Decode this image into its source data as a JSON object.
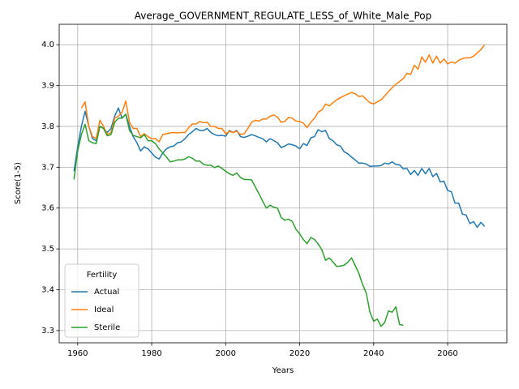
{
  "chart_data": {
    "type": "line",
    "title": "Average_GOVERNMENT_REGULATE_LESS_of_White_Male_Pop",
    "xlabel": "Years",
    "ylabel": "Score(1-5)",
    "legend_title": "Fertility",
    "legend": "lower left",
    "xlim": [
      1955,
      2076
    ],
    "xticks": [
      1960,
      1980,
      2000,
      2020,
      2040,
      2060
    ],
    "ylim": [
      3.27,
      4.05
    ],
    "yticks": [
      3.3,
      3.4,
      3.5,
      3.6,
      3.7,
      3.8,
      3.9,
      {
        "value": 4,
        "label": "4.0"
      }
    ],
    "series": [
      {
        "name": "Actual",
        "color": "#1f77b4",
        "x": [
          1959,
          1960,
          1961,
          1962,
          1963,
          1964,
          1965,
          1966,
          1967,
          1968,
          1969,
          1970,
          1971,
          1972,
          1973,
          1974,
          1975,
          1976,
          1977,
          1978,
          1979,
          1980,
          1981,
          1982,
          1983,
          1984,
          1985,
          1986,
          1987,
          1988,
          1989,
          1990,
          1991,
          1992,
          1993,
          1994,
          1995,
          1996,
          1997,
          1998,
          1999,
          2000,
          2001,
          2002,
          2003,
          2004,
          2005,
          2006,
          2007,
          2008,
          2009,
          2010,
          2011,
          2012,
          2013,
          2014,
          2015,
          2016,
          2017,
          2018,
          2019,
          2020,
          2021,
          2022,
          2023,
          2024,
          2025,
          2026,
          2027,
          2028,
          2029,
          2030,
          2031,
          2032,
          2033,
          2034,
          2035,
          2036,
          2037,
          2038,
          2039,
          2040,
          2041,
          2042,
          2043,
          2044,
          2045,
          2046,
          2047,
          2048,
          2049,
          2050,
          2051,
          2052,
          2053,
          2054,
          2055,
          2056,
          2057,
          2058,
          2059,
          2060,
          2061,
          2062,
          2063,
          2064,
          2065,
          2066,
          2067,
          2068,
          2069,
          2070
        ],
        "values": [
          3.69,
          3.75,
          3.8,
          3.837,
          3.8,
          3.77,
          3.765,
          3.8,
          3.795,
          3.785,
          3.795,
          3.825,
          3.845,
          3.82,
          3.83,
          3.8,
          3.775,
          3.76,
          3.74,
          3.75,
          3.745,
          3.735,
          3.725,
          3.72,
          3.735,
          3.745,
          3.75,
          3.752,
          3.76,
          3.762,
          3.77,
          3.78,
          3.787,
          3.795,
          3.79,
          3.79,
          3.795,
          3.785,
          3.78,
          3.777,
          3.778,
          3.776,
          3.79,
          3.785,
          3.79,
          3.775,
          3.773,
          3.776,
          3.78,
          3.777,
          3.773,
          3.77,
          3.762,
          3.77,
          3.765,
          3.76,
          3.748,
          3.752,
          3.757,
          3.755,
          3.752,
          3.745,
          3.758,
          3.753,
          3.772,
          3.775,
          3.792,
          3.787,
          3.79,
          3.77,
          3.765,
          3.755,
          3.752,
          3.738,
          3.733,
          3.725,
          3.718,
          3.71,
          3.71,
          3.708,
          3.702,
          3.703,
          3.703,
          3.704,
          3.71,
          3.708,
          3.713,
          3.707,
          3.706,
          3.696,
          3.697,
          3.682,
          3.692,
          3.68,
          3.697,
          3.684,
          3.697,
          3.677,
          3.685,
          3.664,
          3.666,
          3.643,
          3.64,
          3.612,
          3.612,
          3.585,
          3.583,
          3.562,
          3.567,
          3.553,
          3.565,
          3.555
        ]
      },
      {
        "name": "Ideal",
        "color": "#ff7f0e",
        "x": [
          1961,
          1962,
          1963,
          1964,
          1965,
          1966,
          1967,
          1968,
          1969,
          1970,
          1971,
          1972,
          1973,
          1974,
          1975,
          1976,
          1977,
          1978,
          1979,
          1980,
          1981,
          1982,
          1983,
          1984,
          1985,
          1986,
          1987,
          1988,
          1989,
          1990,
          1991,
          1992,
          1993,
          1994,
          1995,
          1996,
          1997,
          1998,
          1999,
          2000,
          2001,
          2002,
          2003,
          2004,
          2005,
          2006,
          2007,
          2008,
          2009,
          2010,
          2011,
          2012,
          2013,
          2014,
          2015,
          2016,
          2017,
          2018,
          2019,
          2020,
          2021,
          2022,
          2023,
          2024,
          2025,
          2026,
          2027,
          2028,
          2029,
          2030,
          2031,
          2032,
          2033,
          2034,
          2035,
          2036,
          2037,
          2038,
          2039,
          2040,
          2041,
          2042,
          2043,
          2044,
          2045,
          2046,
          2047,
          2048,
          2049,
          2050,
          2051,
          2052,
          2053,
          2054,
          2055,
          2056,
          2057,
          2058,
          2059,
          2060,
          2061,
          2062,
          2063,
          2064,
          2065,
          2066,
          2067,
          2068,
          2069,
          2070
        ],
        "values": [
          3.845,
          3.86,
          3.8,
          3.775,
          3.77,
          3.815,
          3.8,
          3.78,
          3.785,
          3.82,
          3.825,
          3.835,
          3.862,
          3.81,
          3.795,
          3.795,
          3.775,
          3.782,
          3.775,
          3.77,
          3.77,
          3.762,
          3.78,
          3.782,
          3.784,
          3.785,
          3.784,
          3.785,
          3.785,
          3.797,
          3.806,
          3.806,
          3.812,
          3.809,
          3.81,
          3.8,
          3.8,
          3.795,
          3.795,
          3.782,
          3.788,
          3.785,
          3.788,
          3.78,
          3.782,
          3.795,
          3.81,
          3.815,
          3.813,
          3.818,
          3.818,
          3.825,
          3.828,
          3.823,
          3.81,
          3.812,
          3.822,
          3.82,
          3.813,
          3.812,
          3.808,
          3.797,
          3.81,
          3.82,
          3.835,
          3.84,
          3.855,
          3.85,
          3.858,
          3.865,
          3.87,
          3.875,
          3.879,
          3.883,
          3.88,
          3.873,
          3.875,
          3.866,
          3.858,
          3.855,
          3.86,
          3.865,
          3.875,
          3.885,
          3.895,
          3.903,
          3.91,
          3.917,
          3.93,
          3.927,
          3.95,
          3.94,
          3.97,
          3.957,
          3.975,
          3.955,
          3.972,
          3.955,
          3.965,
          3.953,
          3.958,
          3.955,
          3.962,
          3.966,
          3.968,
          3.968,
          3.972,
          3.98,
          3.988,
          4.0
        ]
      },
      {
        "name": "Sterile",
        "color": "#2ca02c",
        "x": [
          1959,
          1960,
          1961,
          1962,
          1963,
          1964,
          1965,
          1966,
          1967,
          1968,
          1969,
          1970,
          1971,
          1972,
          1973,
          1974,
          1975,
          1976,
          1977,
          1978,
          1979,
          1980,
          1981,
          1982,
          1983,
          1984,
          1985,
          1986,
          1987,
          1988,
          1989,
          1990,
          1991,
          1992,
          1993,
          1994,
          1995,
          1996,
          1997,
          1998,
          1999,
          2000,
          2001,
          2002,
          2003,
          2004,
          2005,
          2006,
          2007,
          2008,
          2009,
          2010,
          2011,
          2012,
          2013,
          2014,
          2015,
          2016,
          2017,
          2018,
          2019,
          2020,
          2021,
          2022,
          2023,
          2024,
          2025,
          2026,
          2027,
          2028,
          2029,
          2030,
          2031,
          2032,
          2033,
          2034,
          2035,
          2036,
          2037,
          2038,
          2039,
          2040,
          2041,
          2042,
          2043,
          2044,
          2045,
          2046,
          2047,
          2048
        ],
        "values": [
          3.67,
          3.74,
          3.78,
          3.805,
          3.765,
          3.76,
          3.758,
          3.8,
          3.795,
          3.777,
          3.78,
          3.81,
          3.82,
          3.82,
          3.83,
          3.79,
          3.778,
          3.775,
          3.772,
          3.78,
          3.765,
          3.765,
          3.758,
          3.745,
          3.735,
          3.725,
          3.713,
          3.715,
          3.718,
          3.718,
          3.72,
          3.726,
          3.722,
          3.715,
          3.715,
          3.707,
          3.705,
          3.705,
          3.699,
          3.703,
          3.697,
          3.69,
          3.684,
          3.68,
          3.686,
          3.675,
          3.67,
          3.67,
          3.669,
          3.652,
          3.635,
          3.617,
          3.6,
          3.607,
          3.602,
          3.6,
          3.577,
          3.57,
          3.573,
          3.567,
          3.548,
          3.537,
          3.523,
          3.513,
          3.528,
          3.523,
          3.512,
          3.498,
          3.472,
          3.478,
          3.468,
          3.457,
          3.458,
          3.46,
          3.467,
          3.478,
          3.46,
          3.44,
          3.413,
          3.392,
          3.345,
          3.323,
          3.328,
          3.31,
          3.32,
          3.348,
          3.345,
          3.358,
          3.315,
          3.313
        ]
      }
    ]
  }
}
